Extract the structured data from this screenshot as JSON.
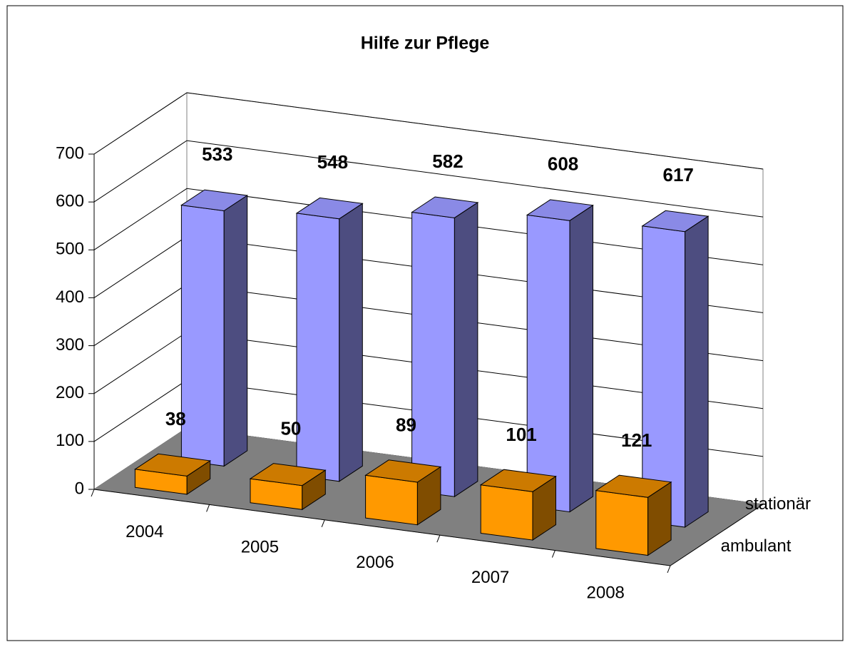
{
  "chart_data": {
    "type": "bar3d",
    "title": "Hilfe zur Pflege",
    "categories": [
      "2004",
      "2005",
      "2006",
      "2007",
      "2008"
    ],
    "series": [
      {
        "name": "stationär",
        "color": "#9999ff",
        "values": [
          533,
          548,
          582,
          608,
          617
        ]
      },
      {
        "name": "ambulant",
        "color": "#ff9900",
        "values": [
          38,
          50,
          89,
          101,
          121
        ]
      }
    ],
    "ylim": [
      0,
      700
    ],
    "yticks": [
      0,
      100,
      200,
      300,
      400,
      500,
      600,
      700
    ],
    "grid": true
  }
}
